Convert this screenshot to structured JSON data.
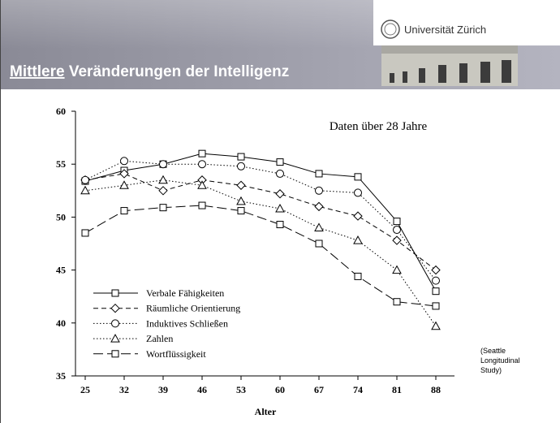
{
  "header": {
    "logo_text": "Universität Zürich",
    "title_underlined": "Mittlere",
    "title_rest": "Veränderungen der Intelligenz"
  },
  "chart_data": {
    "type": "line",
    "annotation": "Daten über 28 Jahre",
    "note_lines": [
      "(Seattle",
      "Longitudinal",
      "Study)"
    ],
    "xlabel": "Alter",
    "categories": [
      "25",
      "32",
      "39",
      "46",
      "53",
      "60",
      "67",
      "74",
      "81",
      "88"
    ],
    "ylim": [
      35,
      60
    ],
    "yticks": [
      35,
      40,
      45,
      50,
      55,
      60
    ],
    "legend": "lower-left",
    "series": [
      {
        "name": "Verbale Fähigkeiten",
        "color": "#000000",
        "marker": "square",
        "dash": "solid",
        "values": [
          53.4,
          54.4,
          55.0,
          56.0,
          55.7,
          55.2,
          54.1,
          53.8,
          49.6,
          43.0
        ]
      },
      {
        "name": "Räumliche Orientierung",
        "color": "#000000",
        "marker": "diamond",
        "dash": "dashed",
        "values": [
          53.5,
          54.1,
          52.5,
          53.5,
          53.0,
          52.2,
          51.0,
          50.1,
          47.8,
          45.0
        ]
      },
      {
        "name": "Induktives Schließen",
        "color": "#000000",
        "marker": "circle",
        "dash": "dotted",
        "values": [
          53.5,
          55.3,
          55.0,
          55.0,
          54.8,
          54.1,
          52.5,
          52.3,
          48.8,
          44.0
        ]
      },
      {
        "name": "Zahlen",
        "color": "#000000",
        "marker": "triangle",
        "dash": "dotted",
        "values": [
          52.5,
          53.0,
          53.5,
          53.0,
          51.5,
          50.8,
          49.0,
          47.8,
          45.0,
          39.7
        ]
      },
      {
        "name": "Wortflüssigkeit",
        "color": "#000000",
        "marker": "square",
        "dash": "longdash",
        "values": [
          48.5,
          50.6,
          50.9,
          51.1,
          50.6,
          49.3,
          47.5,
          44.4,
          42.0,
          41.6
        ]
      }
    ]
  }
}
